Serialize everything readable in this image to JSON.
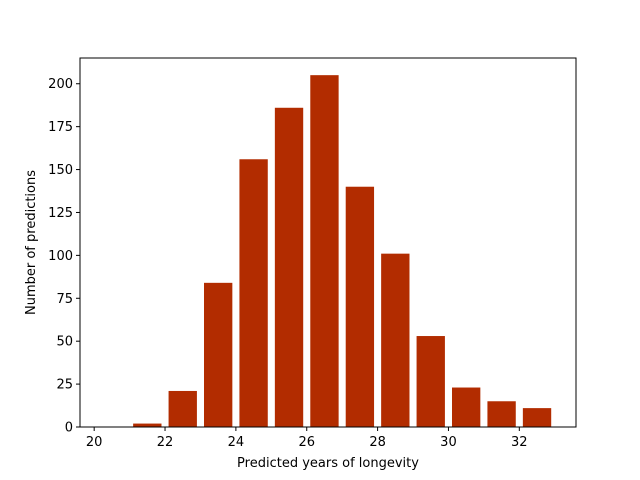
{
  "chart_data": {
    "type": "bar",
    "title": "",
    "xlabel": "Predicted years of longevity",
    "ylabel": "Number of predictions",
    "bar_color": "#b22c00",
    "xlim": [
      19.6,
      33.6
    ],
    "ylim": [
      0,
      215
    ],
    "x_ticks": [
      20,
      22,
      24,
      26,
      28,
      30,
      32
    ],
    "y_ticks": [
      0,
      25,
      50,
      75,
      100,
      125,
      150,
      175,
      200
    ],
    "bar_width": 0.8,
    "x": [
      20.5,
      21.5,
      22.5,
      23.5,
      24.5,
      25.5,
      26.5,
      27.5,
      28.5,
      29.5,
      30.5,
      31.5,
      32.5
    ],
    "values": [
      0,
      2,
      21,
      84,
      156,
      186,
      205,
      140,
      101,
      53,
      23,
      15,
      11
    ],
    "grid": false,
    "legend": false
  }
}
